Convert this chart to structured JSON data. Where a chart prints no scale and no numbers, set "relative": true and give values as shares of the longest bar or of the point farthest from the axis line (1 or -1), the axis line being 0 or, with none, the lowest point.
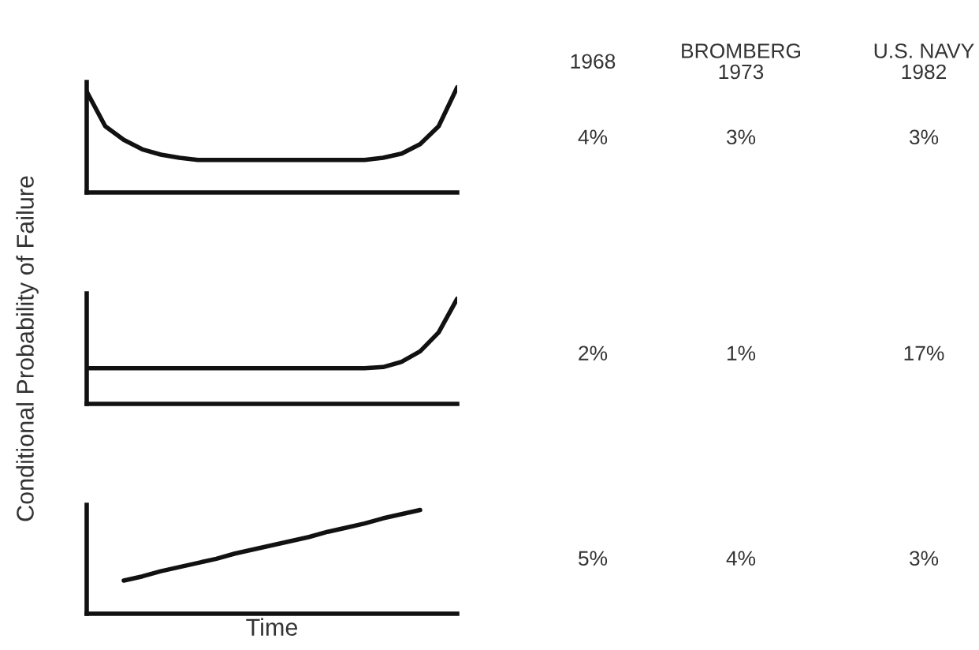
{
  "chart_data": [
    {
      "type": "line",
      "relative": true,
      "tick_labels": false,
      "color": "#111111",
      "categories": [
        null,
        null,
        null,
        null,
        null,
        null,
        null,
        null,
        null,
        null,
        null,
        null,
        null,
        null,
        null,
        null,
        null,
        null,
        null,
        null,
        null
      ],
      "values": [
        0.96,
        0.63,
        0.5,
        0.41,
        0.36,
        0.33,
        0.31,
        0.31,
        0.31,
        0.31,
        0.31,
        0.31,
        0.31,
        0.31,
        0.31,
        0.31,
        0.33,
        0.37,
        0.46,
        0.63,
        1.0
      ]
    },
    {
      "type": "line",
      "relative": true,
      "tick_labels": false,
      "color": "#111111",
      "ylabel": "Conditional Probability of Failure",
      "categories": [
        null,
        null,
        null,
        null,
        null,
        null,
        null,
        null,
        null,
        null,
        null,
        null,
        null,
        null,
        null,
        null,
        null,
        null,
        null,
        null,
        null
      ],
      "values": [
        0.34,
        0.34,
        0.34,
        0.34,
        0.34,
        0.34,
        0.34,
        0.34,
        0.34,
        0.34,
        0.34,
        0.34,
        0.34,
        0.34,
        0.34,
        0.34,
        0.35,
        0.4,
        0.5,
        0.68,
        1.0
      ]
    },
    {
      "type": "line",
      "relative": true,
      "tick_labels": false,
      "color": "#111111",
      "xlabel": "Time",
      "categories": [
        null,
        null,
        null,
        null,
        null,
        null,
        null,
        null,
        null,
        null,
        null,
        null,
        null,
        null,
        null,
        null,
        null,
        null,
        null,
        null,
        null
      ],
      "values": [
        null,
        null,
        0.32,
        0.36,
        0.41,
        0.45,
        0.49,
        0.53,
        0.58,
        0.62,
        0.66,
        0.7,
        0.74,
        0.79,
        0.83,
        0.87,
        0.92,
        0.96,
        1.0,
        null,
        null
      ]
    },
    {
      "type": "other",
      "annotations": [
        "1968",
        "BROMBERG\n1973",
        "U.S. NAVY\n1982",
        "4%",
        "3%",
        "3%",
        "2%",
        "1%",
        "17%",
        "5%",
        "4%",
        "3%"
      ]
    }
  ]
}
